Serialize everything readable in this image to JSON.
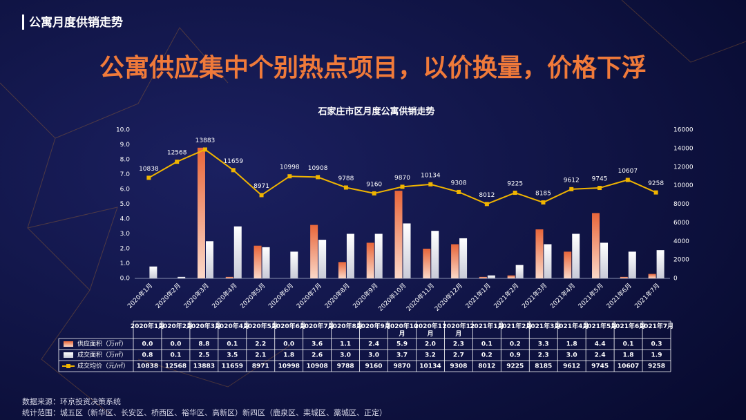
{
  "header": {
    "section": "公寓月度供销走势",
    "headline": "公寓供应集中个别热点项目，以价换量，价格下浮"
  },
  "chart_data": {
    "type": "bar",
    "title": "石家庄市区月度公寓供销走势",
    "categories": [
      "2020年1月",
      "2020年2月",
      "2020年3月",
      "2020年4月",
      "2020年5月",
      "2020年6月",
      "2020年7月",
      "2020年8月",
      "2020年9月",
      "2020年10月",
      "2020年11月",
      "2020年12月",
      "2021年1月",
      "2021年2月",
      "2021年3月",
      "2021年4月",
      "2021年5月",
      "2021年6月",
      "2021年7月"
    ],
    "series": [
      {
        "name": "供应面积（万㎡）",
        "color": "#e8663a",
        "values": [
          0,
          0,
          8.8,
          0.1,
          2.2,
          0,
          3.6,
          1.1,
          2.4,
          5.9,
          2,
          2.3,
          0.1,
          0.2,
          3.3,
          1.8,
          4.4,
          0.1,
          0.3
        ],
        "value_labels": [
          "0.0",
          "0.0",
          "8.8",
          "0.1",
          "2.2",
          "0.0",
          "3.6",
          "1.1",
          "2.4",
          "5.9",
          "2.0",
          "2.3",
          "0.1",
          "0.2",
          "3.3",
          "1.8",
          "4.4",
          "0.1",
          "0.3"
        ]
      },
      {
        "name": "成交面积（万㎡）",
        "color": "#ffffff",
        "values": [
          0.8,
          0.1,
          2.5,
          3.5,
          2.1,
          1.8,
          2.6,
          3,
          3,
          3.7,
          3.2,
          2.7,
          0.2,
          0.9,
          2.3,
          3,
          2.4,
          1.8,
          1.9
        ],
        "value_labels": [
          "0.8",
          "0.1",
          "2.5",
          "3.5",
          "2.1",
          "1.8",
          "2.6",
          "3.0",
          "3.0",
          "3.7",
          "3.2",
          "2.7",
          "0.2",
          "0.9",
          "2.3",
          "3.0",
          "2.4",
          "1.8",
          "1.9"
        ]
      },
      {
        "name": "成交均价（元/㎡）",
        "color": "#f0b400",
        "axis": "y2",
        "values": [
          10838,
          12568,
          13883,
          11659,
          8971,
          10998,
          10908,
          9788,
          9160,
          9870,
          10134,
          9308,
          8012,
          9225,
          8185,
          9612,
          9745,
          10607,
          9258
        ]
      }
    ],
    "ylim": [
      0,
      10
    ],
    "yticks": [
      {
        "value": 0,
        "label": "0.0"
      },
      {
        "value": 1,
        "label": "1.0"
      },
      {
        "value": 2,
        "label": "2.0"
      },
      {
        "value": 3,
        "label": "3.0"
      },
      {
        "value": 4,
        "label": "4.0"
      },
      {
        "value": 5,
        "label": "5.0"
      },
      {
        "value": 6,
        "label": "6.0"
      },
      {
        "value": 7,
        "label": "7.0"
      },
      {
        "value": 8,
        "label": "8.0"
      },
      {
        "value": 9,
        "label": "9.0"
      },
      {
        "value": 10,
        "label": "10.0"
      }
    ],
    "y2lim": [
      0,
      16000
    ],
    "y2ticks": [
      0,
      2000,
      4000,
      6000,
      8000,
      10000,
      12000,
      14000,
      16000
    ]
  },
  "footer": {
    "source": "数据来源：环京投资决策系统",
    "scope": "统计范围：城五区（新华区、长安区、桥西区、裕华区、高新区）新四区（鹿泉区、栾城区、藁城区、正定）"
  }
}
